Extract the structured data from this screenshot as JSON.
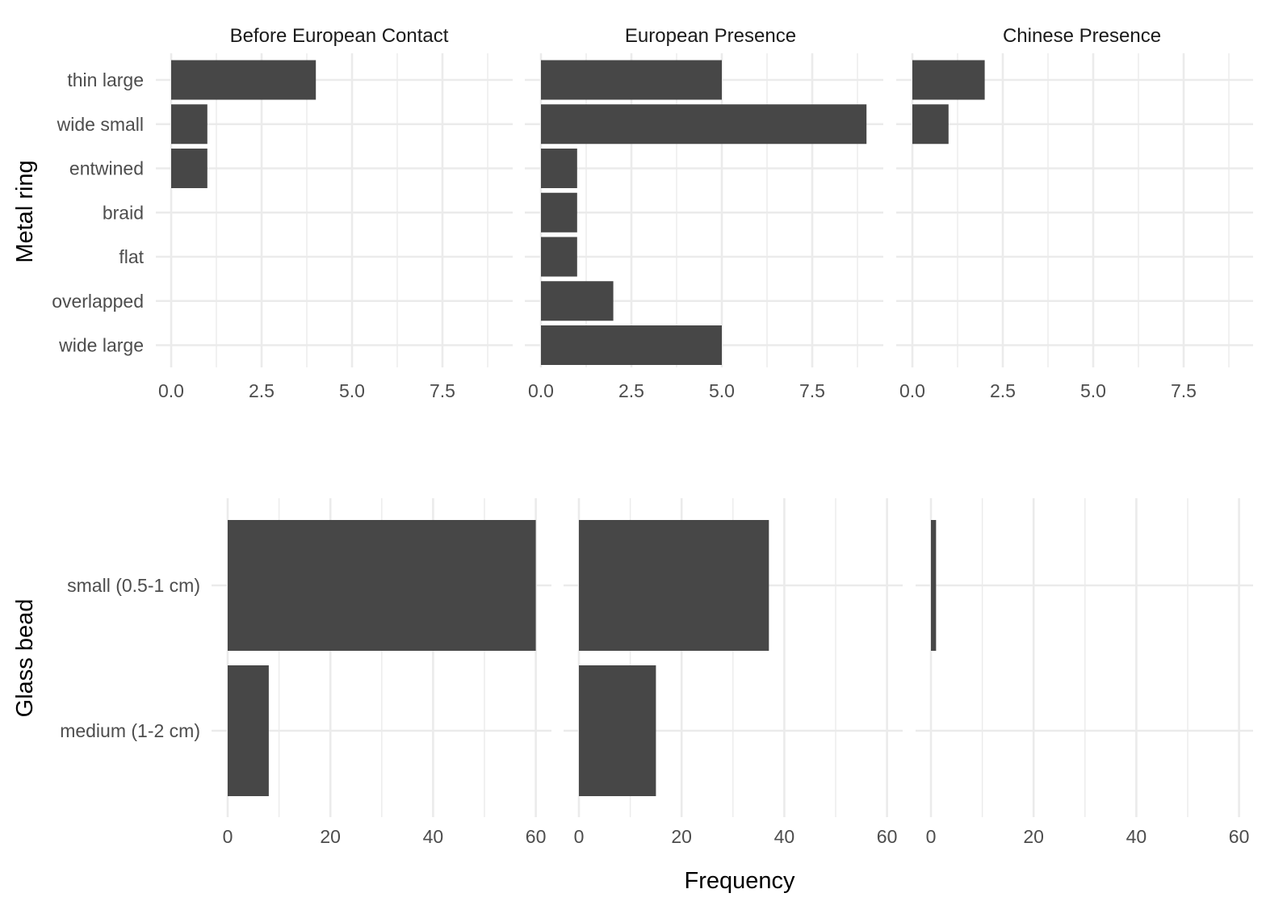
{
  "chart_data": {
    "type": "bar",
    "orientation": "horizontal",
    "facets": [
      "Before European Contact",
      "European Presence",
      "Chinese Presence"
    ],
    "xlabel": "Frequency",
    "grid": true,
    "legend": "none",
    "bar_color": "#474747",
    "grid_color": "#ebebeb",
    "panels": [
      {
        "ylabel": "Metal ring",
        "categories": [
          "thin large",
          "wide small",
          "entwined",
          "braid",
          "flat",
          "overlapped",
          "wide large"
        ],
        "xlim": [
          0,
          9
        ],
        "x_ticks": [
          "0.0",
          "2.5",
          "5.0",
          "7.5"
        ],
        "x_tick_values": [
          0,
          2.5,
          5,
          7.5
        ],
        "series": [
          {
            "facet": "Before European Contact",
            "values": [
              4,
              1,
              1,
              0,
              0,
              0,
              0
            ]
          },
          {
            "facet": "European Presence",
            "values": [
              5,
              9,
              1,
              1,
              1,
              2,
              5
            ]
          },
          {
            "facet": "Chinese Presence",
            "values": [
              2,
              1,
              0,
              0,
              0,
              0,
              0
            ]
          }
        ]
      },
      {
        "ylabel": "Glass bead",
        "categories": [
          "small (0.5-1 cm)",
          "medium (1-2 cm)"
        ],
        "xlim": [
          0,
          60
        ],
        "x_ticks": [
          "0",
          "20",
          "40",
          "60"
        ],
        "x_tick_values": [
          0,
          20,
          40,
          60
        ],
        "series": [
          {
            "facet": "Before European Contact",
            "values": [
              60,
              8
            ]
          },
          {
            "facet": "European Presence",
            "values": [
              37,
              15
            ]
          },
          {
            "facet": "Chinese Presence",
            "values": [
              1,
              0
            ]
          }
        ]
      }
    ]
  }
}
